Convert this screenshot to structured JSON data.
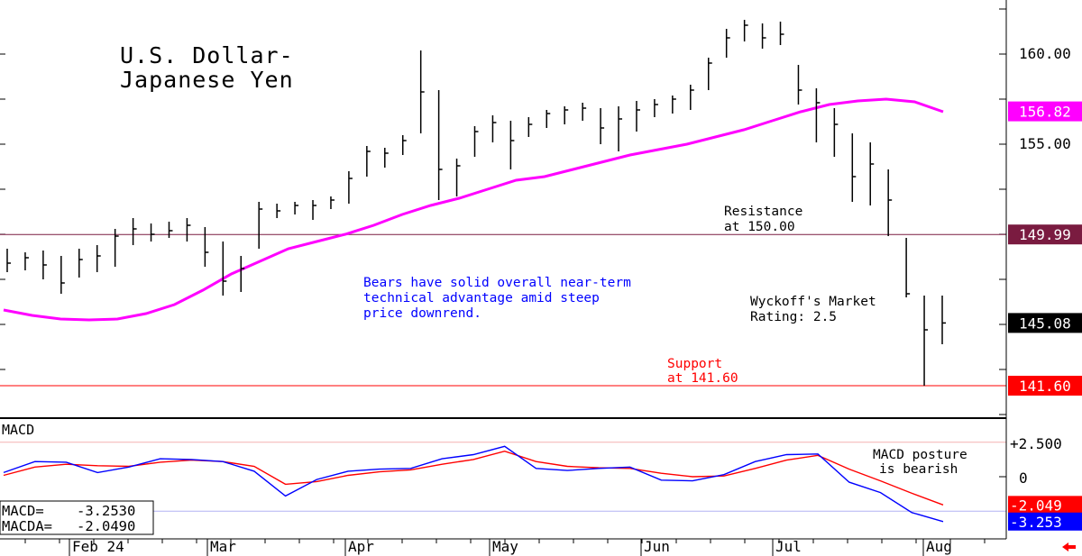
{
  "chart_data": [
    {
      "type": "ohlc",
      "title": "U.S. Dollar-\nJapanese Yen",
      "title_lines": [
        "U.S. Dollar-",
        "Japanese Yen"
      ],
      "x_months": [
        "Feb 24",
        "Mar",
        "Apr",
        "May",
        "Jun",
        "Jul",
        "Aug"
      ],
      "ylim": [
        138.5,
        163
      ],
      "y_ticks": [
        140,
        145,
        150,
        155,
        160
      ],
      "y_tick_labels": [
        {
          "value": 160,
          "label": "160.00"
        },
        {
          "value": 155,
          "label": "155.00"
        }
      ],
      "moving_average": {
        "color": "#ff00ff",
        "values": [
          145.8,
          145.5,
          145.3,
          145.25,
          145.3,
          145.6,
          146.1,
          146.9,
          147.8,
          148.5,
          149.2,
          149.6,
          150.0,
          150.5,
          151.1,
          151.6,
          152.0,
          152.5,
          153.0,
          153.2,
          153.6,
          154.0,
          154.4,
          154.7,
          155.0,
          155.4,
          155.8,
          156.3,
          156.8,
          157.2,
          157.4,
          157.5,
          157.35,
          156.8
        ]
      },
      "price_bars": [
        {
          "h": 149.2,
          "l": 147.9,
          "c": 148.4
        },
        {
          "h": 149.0,
          "l": 148.0,
          "c": 148.7
        },
        {
          "h": 149.1,
          "l": 147.5,
          "c": 148.3
        },
        {
          "h": 148.8,
          "l": 146.7,
          "c": 147.3
        },
        {
          "h": 149.2,
          "l": 147.6,
          "c": 148.6
        },
        {
          "h": 149.4,
          "l": 147.9,
          "c": 148.8
        },
        {
          "h": 150.3,
          "l": 148.2,
          "c": 149.9
        },
        {
          "h": 150.9,
          "l": 149.4,
          "c": 150.3
        },
        {
          "h": 150.6,
          "l": 149.6,
          "c": 150.0
        },
        {
          "h": 150.7,
          "l": 149.8,
          "c": 150.2
        },
        {
          "h": 150.9,
          "l": 149.6,
          "c": 150.5
        },
        {
          "h": 150.4,
          "l": 148.2,
          "c": 149.0
        },
        {
          "h": 149.6,
          "l": 146.6,
          "c": 147.4
        },
        {
          "h": 148.8,
          "l": 146.8,
          "c": 148.1
        },
        {
          "h": 151.8,
          "l": 149.2,
          "c": 151.4
        },
        {
          "h": 151.7,
          "l": 150.9,
          "c": 151.3
        },
        {
          "h": 151.8,
          "l": 151.1,
          "c": 151.6
        },
        {
          "h": 151.9,
          "l": 150.8,
          "c": 151.6
        },
        {
          "h": 152.1,
          "l": 151.4,
          "c": 151.9
        },
        {
          "h": 153.5,
          "l": 151.7,
          "c": 153.1
        },
        {
          "h": 154.9,
          "l": 153.2,
          "c": 154.6
        },
        {
          "h": 154.8,
          "l": 153.7,
          "c": 154.5
        },
        {
          "h": 155.5,
          "l": 154.4,
          "c": 155.2
        },
        {
          "h": 160.2,
          "l": 155.6,
          "c": 157.9
        },
        {
          "h": 158.0,
          "l": 151.9,
          "c": 153.6
        },
        {
          "h": 154.2,
          "l": 152.1,
          "c": 153.8
        },
        {
          "h": 156.0,
          "l": 154.3,
          "c": 155.7
        },
        {
          "h": 156.6,
          "l": 155.1,
          "c": 156.2
        },
        {
          "h": 156.3,
          "l": 153.6,
          "c": 155.2
        },
        {
          "h": 156.5,
          "l": 155.4,
          "c": 156.1
        },
        {
          "h": 156.9,
          "l": 155.9,
          "c": 156.7
        },
        {
          "h": 157.1,
          "l": 156.1,
          "c": 156.9
        },
        {
          "h": 157.3,
          "l": 156.3,
          "c": 157.0
        },
        {
          "h": 157.0,
          "l": 155.0,
          "c": 155.9
        },
        {
          "h": 157.1,
          "l": 154.6,
          "c": 156.4
        },
        {
          "h": 157.4,
          "l": 155.7,
          "c": 156.9
        },
        {
          "h": 157.5,
          "l": 156.5,
          "c": 157.2
        },
        {
          "h": 157.7,
          "l": 156.7,
          "c": 157.5
        },
        {
          "h": 158.3,
          "l": 156.9,
          "c": 158.0
        },
        {
          "h": 159.8,
          "l": 158.0,
          "c": 159.5
        },
        {
          "h": 161.4,
          "l": 159.8,
          "c": 160.9
        },
        {
          "h": 161.9,
          "l": 160.7,
          "c": 161.6
        },
        {
          "h": 161.7,
          "l": 160.3,
          "c": 160.9
        },
        {
          "h": 161.8,
          "l": 160.5,
          "c": 161.1
        },
        {
          "h": 159.4,
          "l": 157.2,
          "c": 158.0
        },
        {
          "h": 158.1,
          "l": 155.1,
          "c": 157.3
        },
        {
          "h": 157.0,
          "l": 154.3,
          "c": 156.1
        },
        {
          "h": 155.6,
          "l": 151.8,
          "c": 153.2
        },
        {
          "h": 155.1,
          "l": 151.6,
          "c": 153.9
        },
        {
          "h": 153.6,
          "l": 149.9,
          "c": 151.9
        },
        {
          "h": 149.8,
          "l": 146.5,
          "c": 146.7
        },
        {
          "h": 146.6,
          "l": 141.6,
          "c": 144.7
        },
        {
          "h": 146.6,
          "l": 143.9,
          "c": 145.08
        }
      ],
      "reference_lines": [
        {
          "value": 149.99,
          "color": "#7a1b40",
          "name": "Resistance"
        },
        {
          "value": 141.6,
          "color": "#ff0000",
          "name": "Support"
        }
      ],
      "price_tags": [
        {
          "value": 156.82,
          "label": "156.82",
          "bg": "#ff00ff",
          "fg": "#ffffff"
        },
        {
          "value": 149.99,
          "label": "149.99",
          "bg": "#7a1b40",
          "fg": "#ffffff"
        },
        {
          "value": 145.08,
          "label": "145.08",
          "bg": "#000000",
          "fg": "#ffffff"
        },
        {
          "value": 141.6,
          "label": "141.60",
          "bg": "#ff0000",
          "fg": "#ffffff"
        }
      ],
      "annotations": [
        {
          "lines": [
            "Resistance",
            "at 150.00"
          ],
          "color": "#000000"
        },
        {
          "lines": [
            "Bears have solid overall near-term",
            "technical advantage amid steep",
            "price downrend."
          ],
          "color": "#0000ff"
        },
        {
          "lines": [
            "Wyckoff's Market",
            "Rating: 2.5"
          ],
          "color": "#000000"
        },
        {
          "lines": [
            "Support",
            "at 141.60"
          ],
          "color": "#ff0000"
        }
      ]
    },
    {
      "type": "line",
      "title": "MACD",
      "ylim": [
        -3.5,
        2.9
      ],
      "y_tick_labels": [
        {
          "value": 2.5,
          "label": "+2.500"
        },
        {
          "value": 0,
          "label": "0"
        }
      ],
      "series": [
        {
          "name": "MACD",
          "color": "#0000ff",
          "values": [
            0.3,
            1.1,
            1.05,
            0.3,
            0.7,
            1.3,
            1.25,
            1.1,
            0.4,
            -1.4,
            -0.2,
            0.4,
            0.55,
            0.6,
            1.3,
            1.6,
            2.2,
            0.6,
            0.45,
            0.6,
            0.7,
            -0.25,
            -0.3,
            0.15,
            1.1,
            1.6,
            1.65,
            -0.4,
            -1.15,
            -2.6,
            -3.253
          ]
        },
        {
          "name": "MACDA",
          "color": "#ff0000",
          "values": [
            0.1,
            0.7,
            0.9,
            0.8,
            0.75,
            1.05,
            1.2,
            1.1,
            0.75,
            -0.55,
            -0.35,
            0.1,
            0.35,
            0.5,
            0.9,
            1.25,
            1.85,
            1.1,
            0.75,
            0.65,
            0.6,
            0.25,
            0.0,
            0.05,
            0.6,
            1.2,
            1.55,
            0.55,
            -0.3,
            -1.2,
            -2.049
          ]
        }
      ],
      "readout": [
        {
          "label": "MACD=",
          "value": "-3.2530"
        },
        {
          "label": "MACDA=",
          "value": "-2.0490"
        }
      ],
      "value_tags": [
        {
          "value": -2.049,
          "label": "-2.049",
          "bg": "#ff0000",
          "fg": "#ffffff"
        },
        {
          "value": -3.253,
          "label": "-3.253",
          "bg": "#0000ff",
          "fg": "#ffffff"
        }
      ],
      "annotation": {
        "lines": [
          "MACD posture",
          "is bearish"
        ],
        "color": "#000000"
      }
    }
  ],
  "colors": {
    "ma": "#ff00ff",
    "macd": "#0000ff",
    "signal": "#ff0000",
    "bars": "#000000",
    "scroll_arrow": "#ff0000"
  },
  "ui": {
    "scroll_arrow_icon": "left-arrow-icon"
  }
}
